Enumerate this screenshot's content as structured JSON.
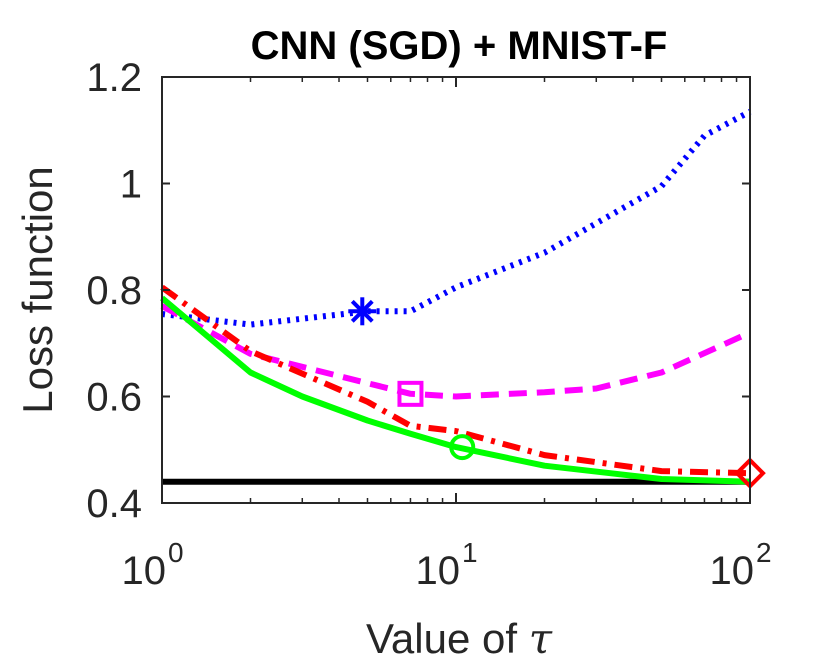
{
  "chart_data": {
    "type": "line",
    "title": "CNN (SGD) + MNIST-F",
    "xlabel": "Value of ",
    "xlabel_symbol": "τ",
    "ylabel": "Loss function",
    "xscale": "log",
    "xlim": [
      1,
      100
    ],
    "ylim": [
      0.4,
      1.2
    ],
    "xticks": [
      {
        "value": 1,
        "base": "10",
        "exp": "0"
      },
      {
        "value": 10,
        "base": "10",
        "exp": "1"
      },
      {
        "value": 100,
        "base": "10",
        "exp": "2"
      }
    ],
    "yticks": [
      {
        "value": 0.4,
        "label": "0.4"
      },
      {
        "value": 0.6,
        "label": "0.6"
      },
      {
        "value": 0.8,
        "label": "0.8"
      },
      {
        "value": 1.0,
        "label": "1"
      },
      {
        "value": 1.2,
        "label": "1.2"
      }
    ],
    "series": [
      {
        "name": "baseline",
        "color": "#000000",
        "style": "solid",
        "x": [
          1,
          100
        ],
        "y": [
          0.44,
          0.44
        ]
      },
      {
        "name": "dotted (star)",
        "color": "#0000ff",
        "style": "dotted",
        "marker": "star",
        "marker_at": {
          "x": 4.8,
          "y": 0.76
        },
        "x": [
          1,
          2,
          5,
          7,
          10,
          20,
          50,
          70,
          100
        ],
        "y": [
          0.755,
          0.735,
          0.76,
          0.76,
          0.805,
          0.87,
          0.995,
          1.09,
          1.135
        ]
      },
      {
        "name": "dashed (square)",
        "color": "#ff00ff",
        "style": "dashed",
        "marker": "square",
        "marker_at": {
          "x": 7,
          "y": 0.605
        },
        "x": [
          1,
          2,
          5,
          7,
          10,
          20,
          30,
          50,
          100
        ],
        "y": [
          0.77,
          0.68,
          0.625,
          0.605,
          0.6,
          0.608,
          0.615,
          0.645,
          0.72
        ]
      },
      {
        "name": "dash-dot (diamond)",
        "color": "#ff0000",
        "style": "dashdot",
        "marker": "diamond",
        "marker_at": {
          "x": 100,
          "y": 0.456
        },
        "x": [
          1,
          2,
          5,
          7,
          10,
          20,
          50,
          100
        ],
        "y": [
          0.805,
          0.685,
          0.59,
          0.545,
          0.535,
          0.49,
          0.46,
          0.456
        ]
      },
      {
        "name": "solid (circle)",
        "color": "#00ff00",
        "style": "solid",
        "marker": "circle",
        "marker_at": {
          "x": 10.5,
          "y": 0.505
        },
        "x": [
          1,
          2,
          3,
          5,
          7,
          10,
          20,
          50,
          100
        ],
        "y": [
          0.785,
          0.645,
          0.6,
          0.555,
          0.53,
          0.505,
          0.47,
          0.445,
          0.44
        ]
      }
    ]
  }
}
